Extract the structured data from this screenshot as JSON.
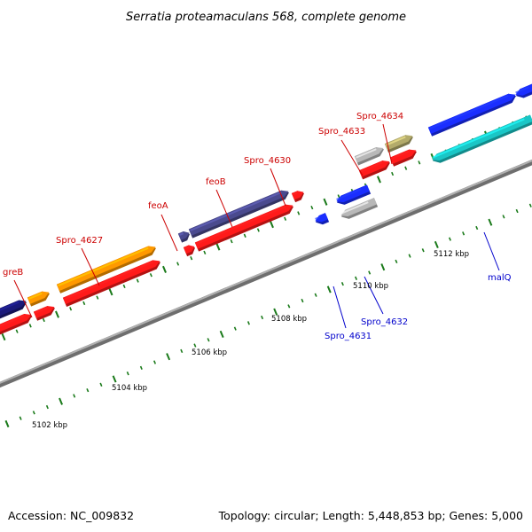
{
  "title": "Serratia proteamaculans 568, complete genome",
  "footer": {
    "accession": "Accession: NC_009832",
    "summary": "Topology: circular; Length: 5,448,853 bp; Genes: 5,000"
  },
  "colors": {
    "backbone": "#7f7f7f",
    "tick": "#1a7a1a",
    "label_forward": "#cc0000",
    "label_reverse": "#0000cc",
    "cds": "#ff1a1a",
    "greB": "#1a1a7a",
    "Spro_4627": "#ff9900",
    "feoB": "#4a4a8e",
    "Spro_4633": "#b8b8b8",
    "Spro_4634": "#b3ab6b",
    "Spro_4631": "#1a2eff",
    "Spro_4632": "#b8b8b8",
    "malQ": "#1ac6c6"
  },
  "scale": {
    "labels": [
      "5102 kbp",
      "5104 kbp",
      "5106 kbp",
      "5108 kbp",
      "5110 kbp",
      "5112 kbp"
    ]
  },
  "genes": [
    {
      "label": "greB",
      "strand": "+"
    },
    {
      "label": "Spro_4627",
      "strand": "+"
    },
    {
      "label": "feoA",
      "strand": "+"
    },
    {
      "label": "feoB",
      "strand": "+"
    },
    {
      "label": "Spro_4630",
      "strand": "+"
    },
    {
      "label": "Spro_4633",
      "strand": "+"
    },
    {
      "label": "Spro_4634",
      "strand": "+"
    },
    {
      "label": "Spro_4631",
      "strand": "-"
    },
    {
      "label": "Spro_4632",
      "strand": "-"
    },
    {
      "label": "malQ",
      "strand": "-"
    }
  ]
}
